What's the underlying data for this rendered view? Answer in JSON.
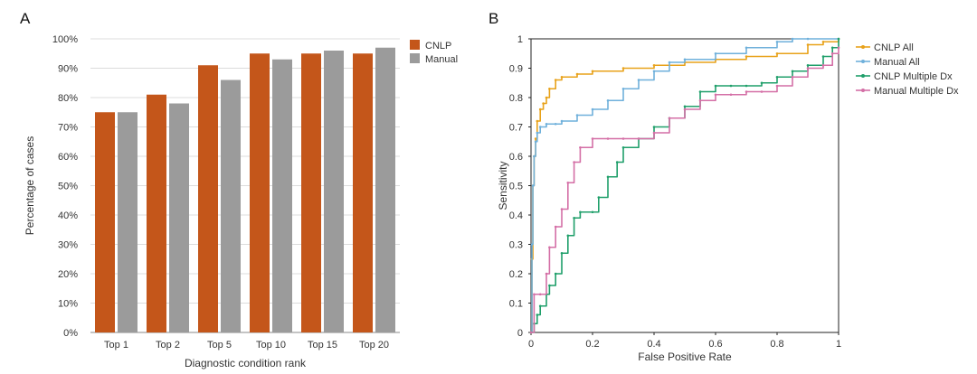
{
  "chart_data": [
    {
      "panel": "A",
      "type": "bar",
      "title": "",
      "xlabel": "Diagnostic condition rank",
      "ylabel": "Percentage of cases",
      "ylim": [
        0,
        100
      ],
      "yticks": [
        "0%",
        "10%",
        "20%",
        "30%",
        "40%",
        "50%",
        "60%",
        "70%",
        "80%",
        "90%",
        "100%"
      ],
      "grid": true,
      "legend_position": "top-right",
      "categories": [
        "Top 1",
        "Top 2",
        "Top 5",
        "Top 10",
        "Top 15",
        "Top 20"
      ],
      "series": [
        {
          "name": "CNLP",
          "color": "#c4561a",
          "values": [
            75,
            81,
            91,
            95,
            95,
            95
          ]
        },
        {
          "name": "Manual",
          "color": "#9b9b9b",
          "values": [
            75,
            78,
            86,
            93,
            96,
            97
          ]
        }
      ]
    },
    {
      "panel": "B",
      "type": "line",
      "title": "",
      "xlabel": "False Positive Rate",
      "ylabel": "Sensitivity",
      "xlim": [
        0,
        1
      ],
      "ylim": [
        0,
        1
      ],
      "xticks": [
        "0",
        "0.2",
        "0.4",
        "0.6",
        "0.8",
        "1"
      ],
      "yticks": [
        "0",
        "0.1",
        "0.2",
        "0.3",
        "0.4",
        "0.5",
        "0.6",
        "0.7",
        "0.8",
        "0.9",
        "1"
      ],
      "grid": false,
      "legend_position": "right",
      "series": [
        {
          "name": "CNLP All",
          "color": "#e8a21a",
          "x": [
            0,
            0.003,
            0.006,
            0.01,
            0.015,
            0.02,
            0.03,
            0.04,
            0.05,
            0.06,
            0.08,
            0.1,
            0.15,
            0.2,
            0.3,
            0.4,
            0.5,
            0.6,
            0.7,
            0.8,
            0.9,
            0.95,
            1
          ],
          "y": [
            0,
            0.25,
            0.5,
            0.6,
            0.66,
            0.72,
            0.76,
            0.78,
            0.8,
            0.83,
            0.86,
            0.87,
            0.88,
            0.89,
            0.9,
            0.91,
            0.92,
            0.93,
            0.94,
            0.95,
            0.98,
            0.99,
            1
          ]
        },
        {
          "name": "Manual All",
          "color": "#6fb0db",
          "x": [
            0,
            0.003,
            0.006,
            0.01,
            0.015,
            0.02,
            0.03,
            0.05,
            0.08,
            0.1,
            0.15,
            0.2,
            0.25,
            0.3,
            0.35,
            0.4,
            0.45,
            0.5,
            0.6,
            0.7,
            0.8,
            0.85,
            0.9,
            1
          ],
          "y": [
            0,
            0.3,
            0.5,
            0.6,
            0.65,
            0.68,
            0.7,
            0.71,
            0.71,
            0.72,
            0.74,
            0.76,
            0.79,
            0.83,
            0.86,
            0.89,
            0.92,
            0.93,
            0.95,
            0.97,
            0.99,
            1,
            1,
            1
          ]
        },
        {
          "name": "CNLP Multiple Dx",
          "color": "#1f9f6a",
          "x": [
            0,
            0.01,
            0.02,
            0.03,
            0.05,
            0.06,
            0.08,
            0.1,
            0.12,
            0.14,
            0.16,
            0.2,
            0.22,
            0.25,
            0.28,
            0.3,
            0.35,
            0.4,
            0.45,
            0.5,
            0.55,
            0.6,
            0.65,
            0.7,
            0.75,
            0.8,
            0.85,
            0.9,
            0.95,
            0.98,
            1
          ],
          "y": [
            0,
            0.03,
            0.06,
            0.09,
            0.13,
            0.16,
            0.2,
            0.27,
            0.33,
            0.39,
            0.41,
            0.41,
            0.46,
            0.53,
            0.58,
            0.63,
            0.66,
            0.7,
            0.73,
            0.77,
            0.82,
            0.84,
            0.84,
            0.84,
            0.85,
            0.87,
            0.89,
            0.91,
            0.94,
            0.97,
            1
          ]
        },
        {
          "name": "Manual Multiple Dx",
          "color": "#d46fa6",
          "x": [
            0,
            0.01,
            0.03,
            0.05,
            0.06,
            0.08,
            0.1,
            0.12,
            0.14,
            0.16,
            0.2,
            0.25,
            0.3,
            0.35,
            0.4,
            0.45,
            0.5,
            0.55,
            0.6,
            0.65,
            0.7,
            0.75,
            0.8,
            0.85,
            0.9,
            0.95,
            0.98,
            1
          ],
          "y": [
            0,
            0.13,
            0.13,
            0.2,
            0.29,
            0.36,
            0.42,
            0.51,
            0.58,
            0.63,
            0.66,
            0.66,
            0.66,
            0.66,
            0.68,
            0.73,
            0.76,
            0.79,
            0.81,
            0.81,
            0.82,
            0.82,
            0.84,
            0.87,
            0.9,
            0.91,
            0.95,
            0.97
          ]
        }
      ]
    }
  ]
}
